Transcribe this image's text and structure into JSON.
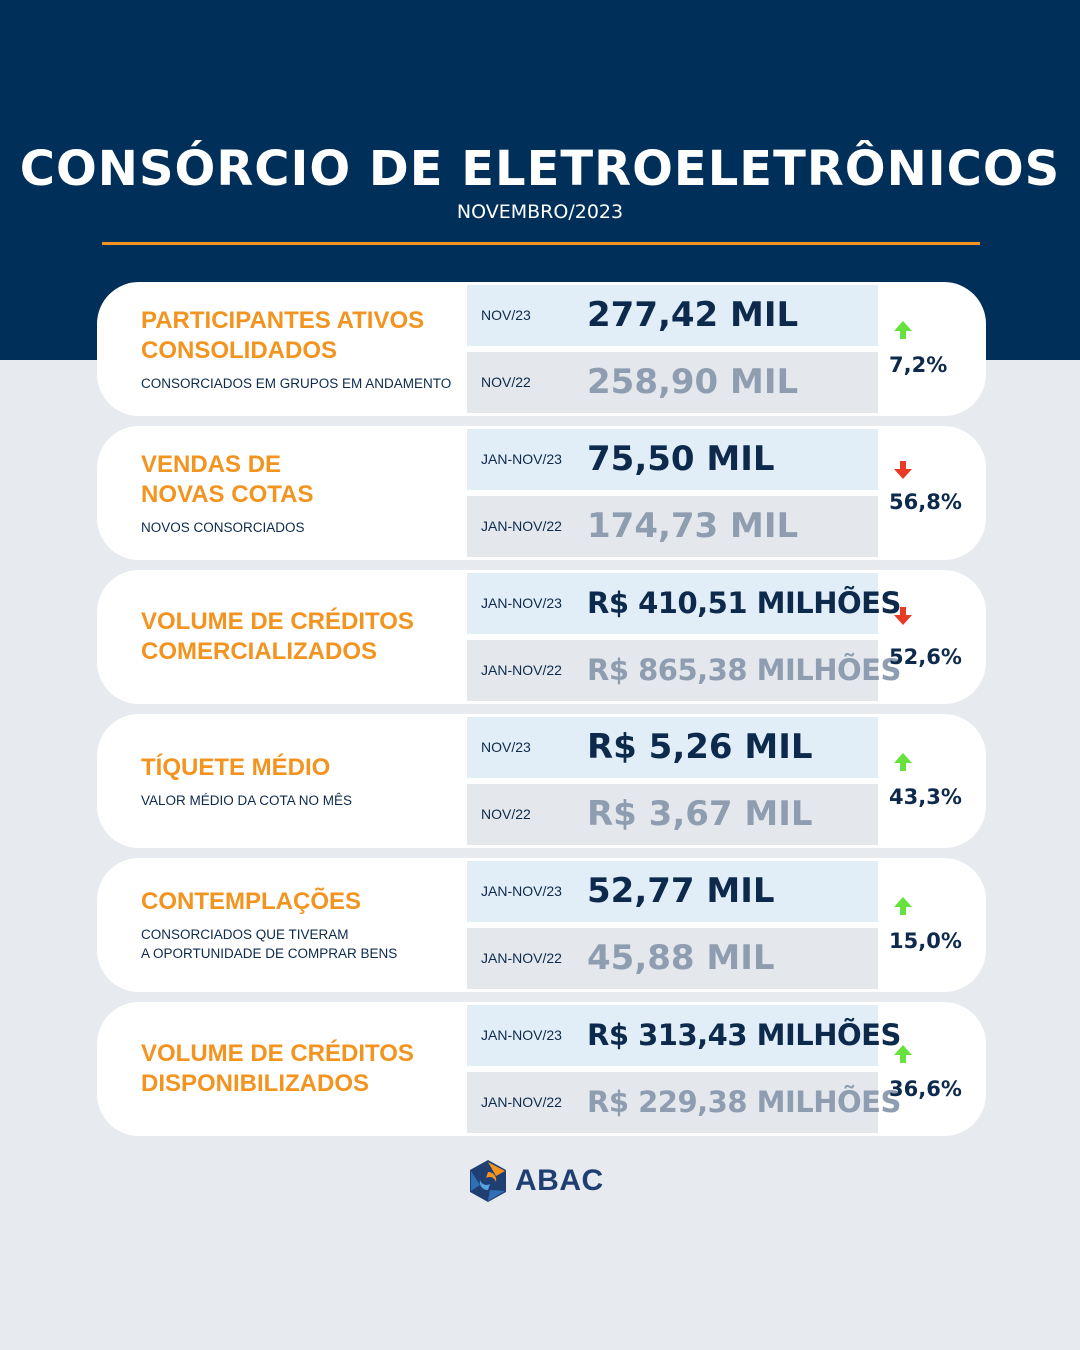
{
  "header": {
    "title": "CONSÓRCIO DE ELETROELETRÔNICOS",
    "subtitle": "NOVEMBRO/2023"
  },
  "colors": {
    "navy": "#00305a",
    "orange": "#f2941f",
    "up": "#66e23c",
    "down": "#e83a24"
  },
  "cards": [
    {
      "title": "PARTICIPANTES ATIVOS\nCONSOLIDADOS",
      "description": "CONSORCIADOS EM GRUPOS EM ANDAMENTO",
      "current_period": "NOV/23",
      "current_value": "277,42 MIL",
      "previous_period": "NOV/22",
      "previous_value": "258,90 MIL",
      "trend": "up",
      "change": "7,2%"
    },
    {
      "title": "VENDAS DE\nNOVAS COTAS",
      "description": "NOVOS CONSORCIADOS",
      "current_period": "JAN-NOV/23",
      "current_value": "75,50 MIL",
      "previous_period": "JAN-NOV/22",
      "previous_value": "174,73 MIL",
      "trend": "down",
      "change": "56,8%"
    },
    {
      "title": "VOLUME DE CRÉDITOS\nCOMERCIALIZADOS",
      "description": "",
      "current_period": "JAN-NOV/23",
      "current_value": "R$ 410,51 MILHÕES",
      "previous_period": "JAN-NOV/22",
      "previous_value": "R$ 865,38 MILHÕES",
      "trend": "down",
      "change": "52,6%"
    },
    {
      "title": "TÍQUETE MÉDIO",
      "description": "VALOR MÉDIO DA COTA NO MÊS",
      "current_period": "NOV/23",
      "current_value": "R$ 5,26 MIL",
      "previous_period": "NOV/22",
      "previous_value": "R$ 3,67 MIL",
      "trend": "up",
      "change": "43,3%"
    },
    {
      "title": "CONTEMPLAÇÕES",
      "description": "CONSORCIADOS QUE TIVERAM\nA OPORTUNIDADE DE COMPRAR BENS",
      "current_period": "JAN-NOV/23",
      "current_value": "52,77 MIL",
      "previous_period": "JAN-NOV/22",
      "previous_value": "45,88 MIL",
      "trend": "up",
      "change": "15,0%"
    },
    {
      "title": "VOLUME DE CRÉDITOS\nDISPONIBILIZADOS",
      "description": "",
      "current_period": "JAN-NOV/23",
      "current_value": "R$ 313,43 MILHÕES",
      "previous_period": "JAN-NOV/22",
      "previous_value": "R$ 229,38 MILHÕES",
      "trend": "up",
      "change": "36,6%"
    }
  ],
  "footer": {
    "logo_icon": "abac-hexagon-icon",
    "logo_text": "ABAC"
  }
}
